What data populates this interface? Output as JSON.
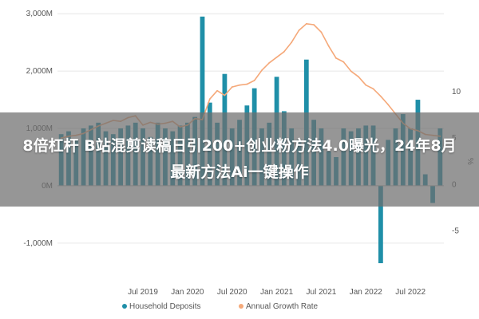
{
  "overlay": {
    "headline": "8倍杠杆 B站混剪读稿日引200+创业粉方法4.0曝光，24年8月最新方法Ai一键操作"
  },
  "colors": {
    "bars": "#1f8fa8",
    "line": "#f5a97a",
    "grid": "#e6e6e6",
    "axis": "#bbbbbb"
  },
  "chart_data": {
    "type": "bar",
    "title": "",
    "xlabel": "",
    "ylabel": "",
    "y2label": "%",
    "ylim": [
      -1600,
      3100
    ],
    "y2lim": [
      -10,
      19
    ],
    "yticks": [
      -1000,
      0,
      1000,
      2000,
      3000
    ],
    "ytick_labels": [
      "-1,000M",
      "0M",
      "1,000M",
      "2,000M",
      "3,000M"
    ],
    "y2ticks": [
      -5,
      0,
      5,
      10
    ],
    "y2tick_labels": [
      "-5",
      "0",
      "5",
      "10"
    ],
    "xticks": [
      "Jul 2019",
      "Jan 2020",
      "Jul 2020",
      "Jan 2021",
      "Jul 2021",
      "Jan 2022",
      "Jul 2022"
    ],
    "xtick_positions": [
      11,
      17,
      23,
      29,
      35,
      41,
      47
    ],
    "grid": true,
    "legend": "bottom",
    "series": [
      {
        "name": "Household Deposits",
        "type": "bar",
        "values": [
          900,
          950,
          800,
          1000,
          1050,
          1100,
          950,
          900,
          1000,
          1050,
          1100,
          1000,
          850,
          1100,
          1000,
          950,
          1050,
          1100,
          1200,
          2950,
          1450,
          1100,
          1950,
          1000,
          1150,
          1400,
          1700,
          1000,
          1100,
          1900,
          1300,
          1000,
          800,
          2200,
          1150,
          1000,
          600,
          500,
          1000,
          950,
          1000,
          1050,
          1050,
          -1350,
          800,
          1000,
          1250,
          1000,
          1500,
          200,
          -300,
          1000
        ]
      },
      {
        "name": "Annual Growth Rate",
        "type": "line",
        "axis": "right",
        "values": [
          5.0,
          5.2,
          5.3,
          5.5,
          5.9,
          6.3,
          6.6,
          6.9,
          6.8,
          7.2,
          7.4,
          6.4,
          6.7,
          6.5,
          6.6,
          6.8,
          6.2,
          6.4,
          7.1,
          7.0,
          9.2,
          10.1,
          9.6,
          10.5,
          10.7,
          10.8,
          11.2,
          12.3,
          13.1,
          13.7,
          14.3,
          15.3,
          16.6,
          17.3,
          17.2,
          16.4,
          14.9,
          13.6,
          13.2,
          12.2,
          11.6,
          10.7,
          10.3,
          9.5,
          8.6,
          7.6,
          6.6,
          6.0,
          5.8,
          5.4,
          5.3,
          5.2
        ]
      }
    ]
  }
}
